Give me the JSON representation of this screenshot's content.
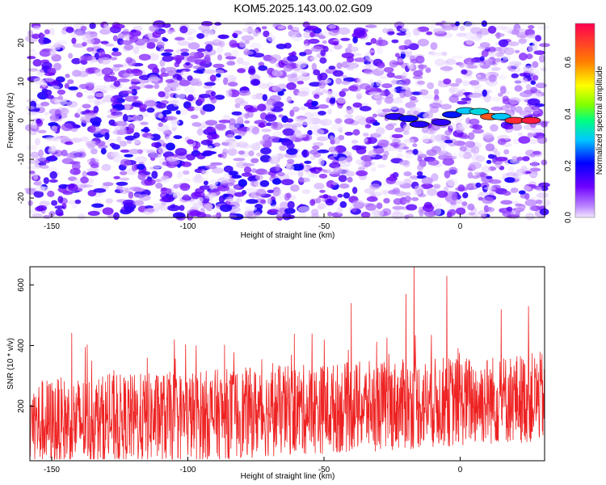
{
  "title": "KOM5.2025.143.00.02.G09",
  "chart_data": [
    {
      "type": "heatmap",
      "xlabel": "Height of straight line (km)",
      "ylabel": "Frequency (Hz)",
      "xlim": [
        -158,
        31
      ],
      "ylim": [
        -25,
        25
      ],
      "xticks": [
        -150,
        -100,
        -50,
        0
      ],
      "yticks": [
        -20,
        -10,
        0,
        10,
        20
      ],
      "colorbar": {
        "label": "Normalized spectral amplitude",
        "range": [
          0.0,
          0.75
        ],
        "ticks": [
          0.0,
          0.2,
          0.4,
          0.6
        ],
        "tick_labels": [
          "0.0",
          "0.2",
          "0.4",
          "0.6"
        ]
      },
      "background_noise": {
        "amplitude_range": [
          0.0,
          0.2
        ]
      },
      "features": [
        {
          "x": -24,
          "y": 1.0,
          "amplitude": 0.18
        },
        {
          "x": -19,
          "y": 0.5,
          "amplitude": 0.2
        },
        {
          "x": -15,
          "y": -1.0,
          "amplitude": 0.18
        },
        {
          "x": -7,
          "y": -0.5,
          "amplitude": 0.17
        },
        {
          "x": -3,
          "y": 1.5,
          "amplitude": 0.22
        },
        {
          "x": 2,
          "y": 2.5,
          "amplitude": 0.3
        },
        {
          "x": 7,
          "y": 2.3,
          "amplitude": 0.32
        },
        {
          "x": 11,
          "y": 1.0,
          "amplitude": 0.65
        },
        {
          "x": 15,
          "y": 1.0,
          "amplitude": 0.3
        },
        {
          "x": 20,
          "y": 0.0,
          "amplitude": 0.7
        },
        {
          "x": 26,
          "y": 0.0,
          "amplitude": 0.72
        }
      ]
    },
    {
      "type": "line",
      "xlabel": "Height of straight line (km)",
      "ylabel": "SNR (10 * v/v)",
      "xlim": [
        -158,
        31
      ],
      "ylim": [
        20,
        660
      ],
      "xticks": [
        -150,
        -100,
        -50,
        0
      ],
      "yticks": [
        200,
        400,
        600
      ],
      "series": [
        {
          "color": "#ee2222",
          "baseline_start": 140,
          "baseline_end": 230,
          "noise_range": 150,
          "peaks": [
            {
              "x": -115,
              "value": 360
            },
            {
              "x": -97,
              "value": 400
            },
            {
              "x": -62,
              "value": 370
            },
            {
              "x": -50,
              "value": 420
            },
            {
              "x": -40,
              "value": 540
            },
            {
              "x": -20,
              "value": 570
            },
            {
              "x": -17,
              "value": 660
            },
            {
              "x": -5,
              "value": 630
            },
            {
              "x": 15,
              "value": 520
            },
            {
              "x": 25,
              "value": 530
            }
          ]
        }
      ]
    }
  ]
}
